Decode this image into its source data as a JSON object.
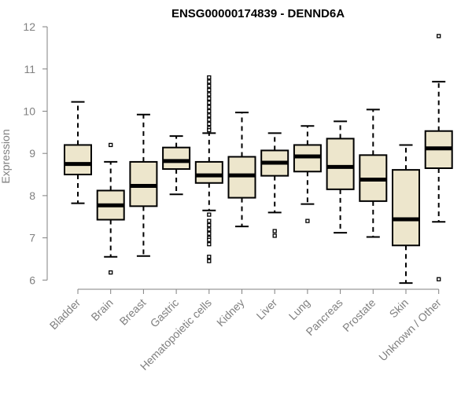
{
  "chart_data": {
    "type": "boxplot",
    "title": "ENSG00000174839 - DENND6A",
    "xlabel": "",
    "ylabel": "Expression",
    "ylim": [
      5.95,
      12.15
    ],
    "yticks": [
      6,
      7,
      8,
      9,
      10,
      11,
      12
    ],
    "grid": false,
    "box_color": "#ede6cc",
    "categories": [
      "Bladder",
      "Brain",
      "Breast",
      "Gastric",
      "Hematopoietic cells",
      "Kidney",
      "Liver",
      "Lung",
      "Pancreas",
      "Prostate",
      "Skin",
      "Unknown / Other"
    ],
    "boxes": [
      {
        "label": "Bladder",
        "whisker_low": 7.82,
        "q1": 8.5,
        "median": 8.75,
        "q3": 9.2,
        "whisker_high": 10.22,
        "outliers": []
      },
      {
        "label": "Brain",
        "whisker_low": 6.55,
        "q1": 7.43,
        "median": 7.77,
        "q3": 8.12,
        "whisker_high": 8.8,
        "outliers": [
          6.18,
          9.2
        ]
      },
      {
        "label": "Breast",
        "whisker_low": 6.57,
        "q1": 7.75,
        "median": 8.23,
        "q3": 8.8,
        "whisker_high": 9.92,
        "outliers": []
      },
      {
        "label": "Gastric",
        "whisker_low": 8.03,
        "q1": 8.63,
        "median": 8.82,
        "q3": 9.14,
        "whisker_high": 9.41,
        "outliers": []
      },
      {
        "label": "Hematopoietic cells",
        "whisker_low": 7.65,
        "q1": 8.3,
        "median": 8.48,
        "q3": 8.8,
        "whisker_high": 9.48,
        "outliers": [
          10.8,
          10.7,
          10.6,
          10.5,
          10.4,
          10.3,
          10.2,
          10.1,
          10.0,
          9.9,
          9.8,
          9.7,
          9.6,
          9.55,
          7.55,
          7.4,
          7.3,
          7.2,
          7.1,
          7.0,
          6.95,
          6.85,
          6.55,
          6.45
        ]
      },
      {
        "label": "Kidney",
        "whisker_low": 7.27,
        "q1": 7.95,
        "median": 8.48,
        "q3": 8.92,
        "whisker_high": 9.97,
        "outliers": []
      },
      {
        "label": "Liver",
        "whisker_low": 7.6,
        "q1": 8.47,
        "median": 8.78,
        "q3": 9.07,
        "whisker_high": 9.48,
        "outliers": [
          7.16,
          7.05
        ]
      },
      {
        "label": "Lung",
        "whisker_low": 7.8,
        "q1": 8.57,
        "median": 8.93,
        "q3": 9.2,
        "whisker_high": 9.65,
        "outliers": [
          7.4
        ]
      },
      {
        "label": "Pancreas",
        "whisker_low": 7.12,
        "q1": 8.15,
        "median": 8.68,
        "q3": 9.35,
        "whisker_high": 9.76,
        "outliers": []
      },
      {
        "label": "Prostate",
        "whisker_low": 7.02,
        "q1": 7.87,
        "median": 8.38,
        "q3": 8.96,
        "whisker_high": 10.04,
        "outliers": []
      },
      {
        "label": "Skin",
        "whisker_low": 5.93,
        "q1": 6.82,
        "median": 7.44,
        "q3": 8.61,
        "whisker_high": 9.2,
        "outliers": []
      },
      {
        "label": "Unknown / Other",
        "whisker_low": 7.38,
        "q1": 8.65,
        "median": 9.12,
        "q3": 9.53,
        "whisker_high": 10.7,
        "outliers": [
          11.78,
          6.02
        ]
      }
    ]
  }
}
